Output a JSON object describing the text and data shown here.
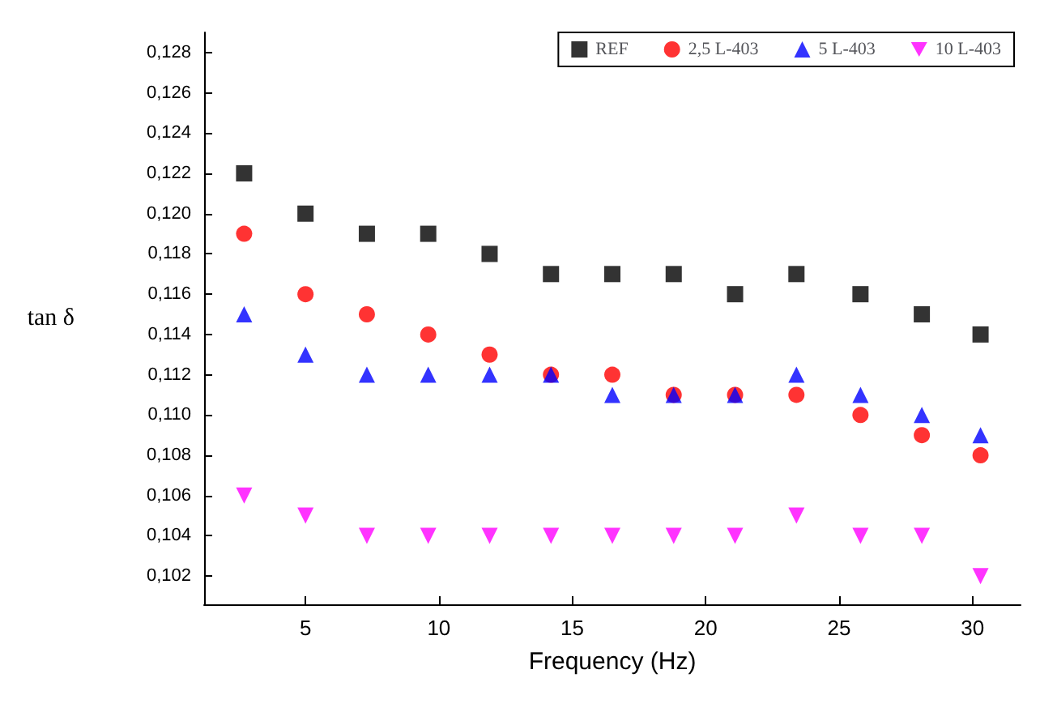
{
  "chart_data": {
    "type": "scatter",
    "xlabel": "Frequency (Hz)",
    "ylabel": "tan δ",
    "x": [
      2.7,
      5.0,
      7.3,
      9.6,
      11.9,
      14.2,
      16.5,
      18.8,
      21.1,
      23.4,
      25.8,
      28.1,
      30.3
    ],
    "series": [
      {
        "name": "REF",
        "color": "#000000",
        "marker": "square",
        "values": [
          0.122,
          0.12,
          0.119,
          0.119,
          0.118,
          0.117,
          0.117,
          0.117,
          0.116,
          0.117,
          0.116,
          0.115,
          0.114
        ]
      },
      {
        "name": "2,5 L-403",
        "color": "#ff0000",
        "marker": "circle",
        "values": [
          0.119,
          0.116,
          0.115,
          0.114,
          0.113,
          0.112,
          0.112,
          0.111,
          0.111,
          0.111,
          0.11,
          0.109,
          0.108
        ]
      },
      {
        "name": "5 L-403",
        "color": "#0000ff",
        "marker": "triangle",
        "values": [
          0.115,
          0.113,
          0.112,
          0.112,
          0.112,
          0.112,
          0.111,
          0.111,
          0.111,
          0.112,
          0.111,
          0.11,
          0.109
        ]
      },
      {
        "name": "10 L-403",
        "color": "#ff00ff",
        "marker": "triangle-down",
        "values": [
          0.106,
          0.105,
          0.104,
          0.104,
          0.104,
          0.104,
          0.104,
          0.104,
          0.104,
          0.105,
          0.104,
          0.104,
          0.102
        ]
      }
    ],
    "xlim": [
      1.2,
      31.8
    ],
    "xticks": [
      5,
      10,
      15,
      20,
      25,
      30
    ],
    "ylim": [
      0.1006,
      0.129
    ],
    "yticks": [
      {
        "value": 0.102,
        "label": "0,102"
      },
      {
        "value": 0.104,
        "label": "0,104"
      },
      {
        "value": 0.106,
        "label": "0,106"
      },
      {
        "value": 0.108,
        "label": "0,108"
      },
      {
        "value": 0.11,
        "label": "0,110"
      },
      {
        "value": 0.112,
        "label": "0,112"
      },
      {
        "value": 0.114,
        "label": "0,114"
      },
      {
        "value": 0.116,
        "label": "0,116"
      },
      {
        "value": 0.118,
        "label": "0,118"
      },
      {
        "value": 0.12,
        "label": "0,120"
      },
      {
        "value": 0.122,
        "label": "0,122"
      },
      {
        "value": 0.124,
        "label": "0,124"
      },
      {
        "value": 0.126,
        "label": "0,126"
      },
      {
        "value": 0.128,
        "label": "0,128"
      }
    ],
    "grid": false,
    "legend": "top right"
  }
}
